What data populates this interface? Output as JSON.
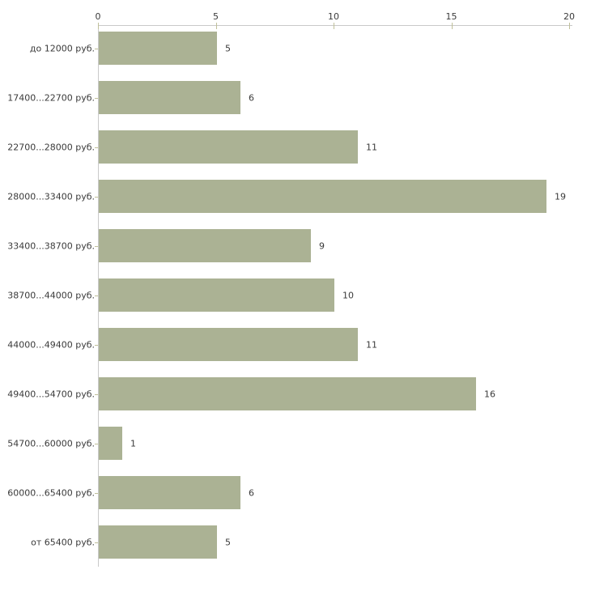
{
  "chart_data": {
    "type": "bar",
    "orientation": "horizontal",
    "title": "",
    "xlabel": "",
    "ylabel": "",
    "categories": [
      "до 12000 руб.",
      "17400...22700 руб.",
      "22700...28000 руб.",
      "28000...33400 руб.",
      "33400...38700 руб.",
      "38700...44000 руб.",
      "44000...49400 руб.",
      "49400...54700 руб.",
      "54700...60000 руб.",
      "60000...65400 руб.",
      "от 65400 руб."
    ],
    "values": [
      5,
      6,
      11,
      19,
      9,
      10,
      11,
      16,
      1,
      6,
      5
    ],
    "value_labels": [
      "5",
      "6",
      "11",
      "19",
      "9",
      "10",
      "11",
      "16",
      "1",
      "6",
      "5"
    ],
    "x_ticks": [
      "0",
      "5",
      "10",
      "15",
      "20"
    ],
    "xlim": [
      0,
      20
    ],
    "grid": false,
    "legend": "none",
    "axis_position": "top",
    "colors": {
      "bar": "#abb294",
      "axis_line": "#c9c9c9",
      "tick_mark": "#c0c09a",
      "text": "#3a3a3a"
    }
  }
}
